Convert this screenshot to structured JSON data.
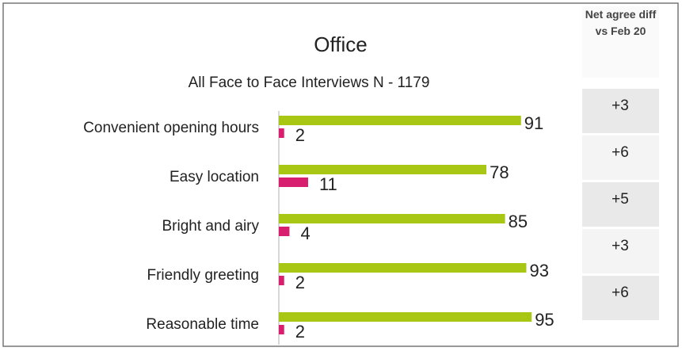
{
  "chart_data": {
    "type": "bar",
    "orientation": "horizontal",
    "title": "Office",
    "subtitle": "All Face to Face Interviews N - 1179",
    "categories": [
      "Convenient   opening hours",
      "Easy  location",
      "Bright and airy",
      "Friendly greeting",
      "Reasonable time"
    ],
    "series": [
      {
        "color": "#a8c614",
        "values": [
          91,
          78,
          85,
          93,
          95
        ]
      },
      {
        "color": "#d81e6e",
        "values": [
          2,
          11,
          4,
          2,
          2
        ]
      }
    ],
    "side_table": {
      "header": "Net agree diff vs Feb 20",
      "values": [
        "+3",
        "+6",
        "+5",
        "+3",
        "+6"
      ]
    }
  }
}
